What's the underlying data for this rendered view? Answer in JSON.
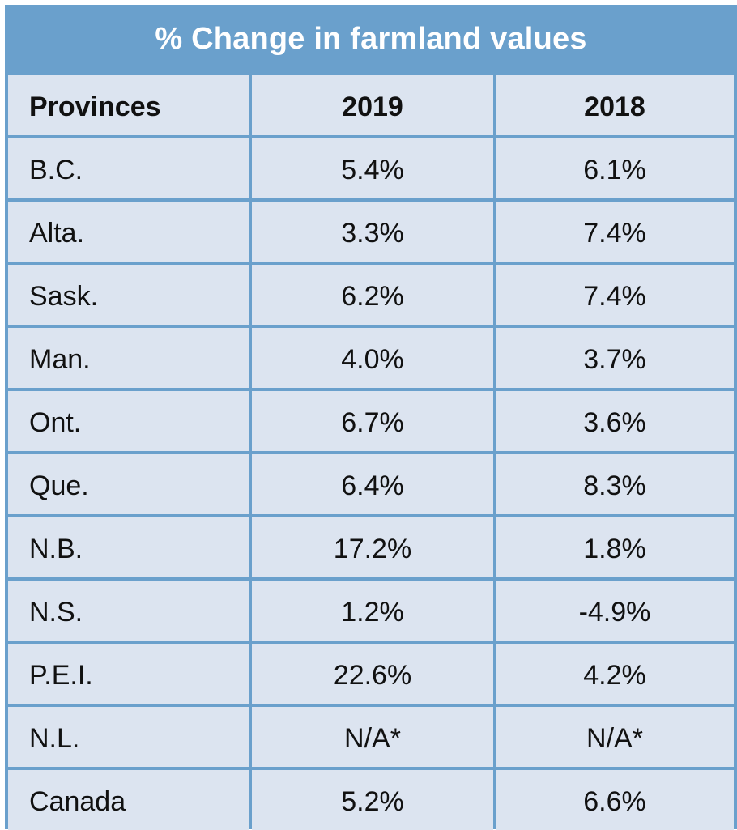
{
  "chart_data": {
    "type": "table",
    "title": "% Change in farmland values",
    "columns": [
      "Provinces",
      "2019",
      "2018"
    ],
    "rows": [
      {
        "province": "B.C.",
        "y2019": "5.4%",
        "y2018": "6.1%"
      },
      {
        "province": "Alta.",
        "y2019": "3.3%",
        "y2018": "7.4%"
      },
      {
        "province": "Sask.",
        "y2019": "6.2%",
        "y2018": "7.4%"
      },
      {
        "province": "Man.",
        "y2019": "4.0%",
        "y2018": "3.7%"
      },
      {
        "province": "Ont.",
        "y2019": "6.7%",
        "y2018": "3.6%"
      },
      {
        "province": "Que.",
        "y2019": "6.4%",
        "y2018": "8.3%"
      },
      {
        "province": "N.B.",
        "y2019": "17.2%",
        "y2018": "1.8%"
      },
      {
        "province": "N.S.",
        "y2019": "1.2%",
        "y2018": "-4.9%"
      },
      {
        "province": "P.E.I.",
        "y2019": "22.6%",
        "y2018": "4.2%"
      },
      {
        "province": "N.L.",
        "y2019": "N/A*",
        "y2018": "N/A*"
      },
      {
        "province": "Canada",
        "y2019": "5.2%",
        "y2018": "6.6%"
      }
    ]
  },
  "colors": {
    "frame": "#6aa0cc",
    "cell_background": "#dce4f0",
    "title_text": "#ffffff",
    "cell_text": "#111111"
  }
}
